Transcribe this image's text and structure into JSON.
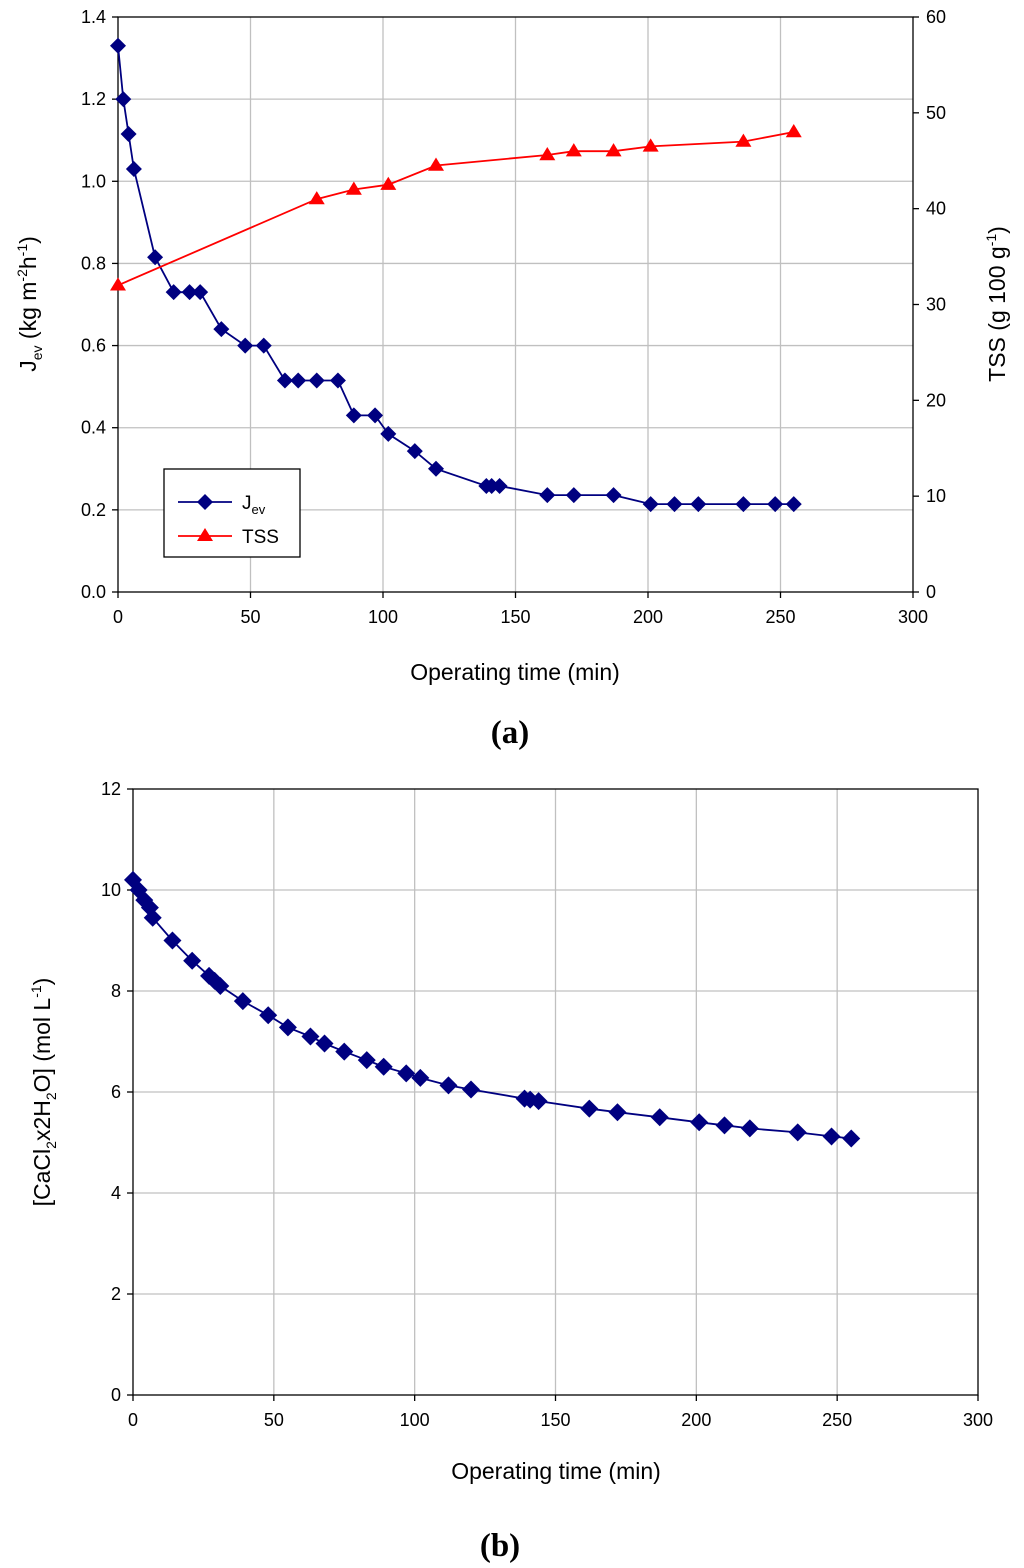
{
  "chart_data": [
    {
      "panel": "a",
      "type": "line",
      "xlabel": "Operating time (min)",
      "xlim": [
        0,
        300
      ],
      "xticks": [
        0,
        50,
        100,
        150,
        200,
        250,
        300
      ],
      "ylabel": "Jev (kg m-2h-1)",
      "ylim": [
        0,
        1.4
      ],
      "yticks": [
        "0.0",
        "0.2",
        "0.4",
        "0.6",
        "0.8",
        "1.0",
        "1.2",
        "1.4"
      ],
      "y2label": "TSS (g 100 g-1)",
      "y2lim": [
        0,
        60
      ],
      "y2ticks": [
        0,
        10,
        20,
        30,
        40,
        50,
        60
      ],
      "grid": true,
      "legend_position": "lower-left",
      "series": [
        {
          "name": "Jev",
          "axis": "left",
          "color": "#000080",
          "marker": "diamond",
          "x": [
            0,
            2,
            4,
            6,
            14,
            21,
            27,
            31,
            39,
            48,
            55,
            63,
            68,
            75,
            83,
            89,
            97,
            102,
            112,
            120,
            139,
            141,
            144,
            162,
            172,
            187,
            201,
            210,
            219,
            236,
            248,
            255
          ],
          "y": [
            1.33,
            1.2,
            1.115,
            1.03,
            0.815,
            0.73,
            0.73,
            0.73,
            0.64,
            0.6,
            0.6,
            0.515,
            0.515,
            0.515,
            0.515,
            0.43,
            0.43,
            0.385,
            0.343,
            0.3,
            0.258,
            0.258,
            0.258,
            0.236,
            0.236,
            0.236,
            0.214,
            0.214,
            0.214,
            0.214,
            0.214,
            0.214
          ]
        },
        {
          "name": "TSS",
          "axis": "right",
          "color": "#ff0000",
          "marker": "triangle",
          "x": [
            0,
            75,
            89,
            102,
            120,
            162,
            172,
            187,
            201,
            236,
            255
          ],
          "y": [
            32,
            41,
            42,
            42.5,
            44.5,
            45.6,
            46,
            46,
            46.5,
            47,
            48
          ]
        }
      ]
    },
    {
      "panel": "b",
      "type": "line",
      "xlabel": "Operating time (min)",
      "xlim": [
        0,
        300
      ],
      "xticks": [
        0,
        50,
        100,
        150,
        200,
        250,
        300
      ],
      "ylabel": "[CaCl2x2H2O] (mol L-1)",
      "ylim": [
        0,
        12
      ],
      "yticks": [
        0,
        2,
        4,
        6,
        8,
        10,
        12
      ],
      "grid": true,
      "series": [
        {
          "name": "CaCl2x2H2O",
          "color": "#000080",
          "marker": "diamond",
          "x": [
            0,
            2,
            4,
            6,
            7,
            14,
            21,
            27,
            29,
            31,
            39,
            48,
            55,
            63,
            68,
            75,
            83,
            89,
            97,
            102,
            112,
            120,
            139,
            141,
            144,
            162,
            172,
            187,
            201,
            210,
            219,
            236,
            248,
            255
          ],
          "y": [
            10.2,
            10.0,
            9.8,
            9.65,
            9.45,
            9.0,
            8.6,
            8.3,
            8.2,
            8.1,
            7.8,
            7.52,
            7.28,
            7.1,
            6.96,
            6.8,
            6.63,
            6.5,
            6.37,
            6.28,
            6.13,
            6.05,
            5.87,
            5.85,
            5.82,
            5.67,
            5.6,
            5.5,
            5.4,
            5.34,
            5.28,
            5.2,
            5.12,
            5.08
          ]
        }
      ]
    }
  ],
  "labels": {
    "panel_a": {
      "open": "(",
      "letter": "a",
      "close": ")"
    },
    "panel_b": {
      "open": "(",
      "letter": "b",
      "close": ")"
    },
    "a_ylabel_main": "J",
    "a_ylabel_sub": "ev",
    "a_ylabel_unit": " (kg m",
    "a_ylabel_exp1": "-2",
    "a_ylabel_h": "h",
    "a_ylabel_exp2": "-1",
    "a_ylabel_close": ")",
    "a_y2label_main": "TSS (g 100 g",
    "a_y2label_exp": "-1",
    "a_y2label_close": ")",
    "legend_jev_main": "J",
    "legend_jev_sub": "ev",
    "legend_tss": "TSS",
    "b_ylabel_p1": "[CaCl",
    "b_ylabel_s1": "2",
    "b_ylabel_p2": "x2H",
    "b_ylabel_s2": "2",
    "b_ylabel_p3": "O] (mol L",
    "b_ylabel_e": "-1",
    "b_ylabel_p4": ")"
  }
}
